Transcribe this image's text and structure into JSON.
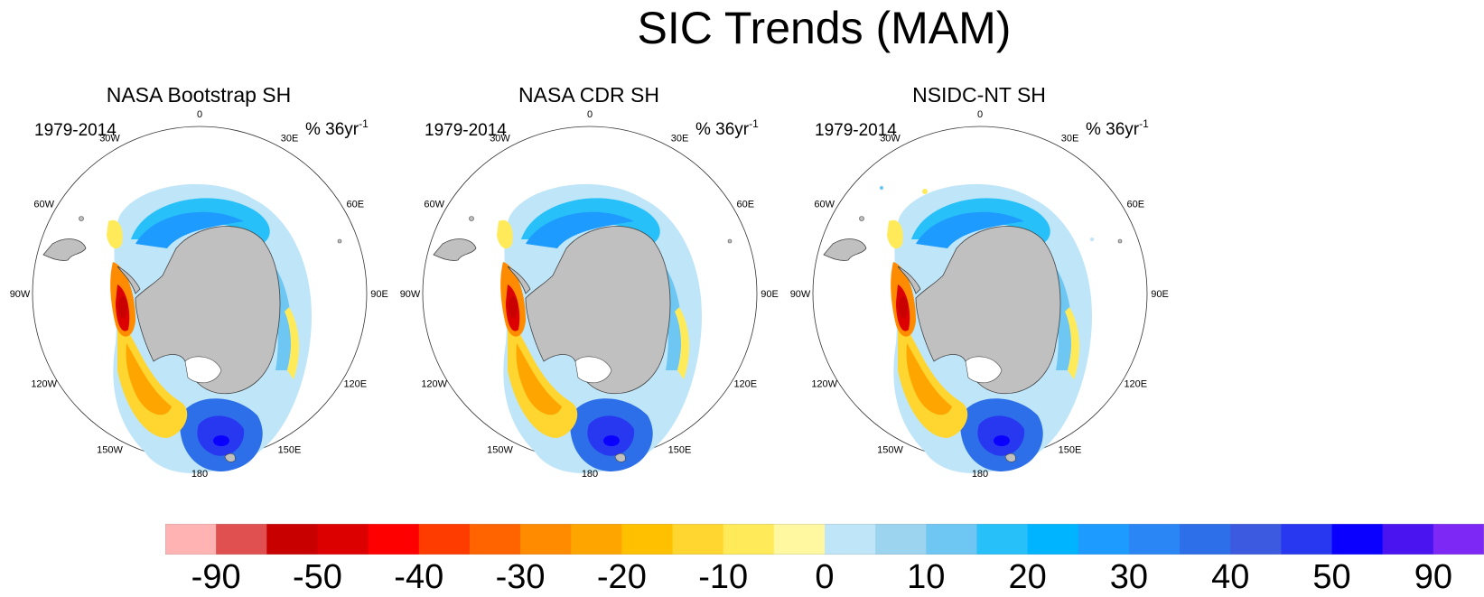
{
  "title": "SIC Trends (MAM)",
  "panels": [
    {
      "title": "NASA Bootstrap SH",
      "period": "1979-2014",
      "units_base": "% 36yr",
      "units_exp": "-1"
    },
    {
      "title": "NASA CDR SH",
      "period": "1979-2014",
      "units_base": "% 36yr",
      "units_exp": "-1"
    },
    {
      "title": "NSIDC-NT SH",
      "period": "1979-2014",
      "units_base": "% 36yr",
      "units_exp": "-1"
    }
  ],
  "longitude_labels": [
    "0",
    "30E",
    "60E",
    "90E",
    "120E",
    "150E",
    "180",
    "150W",
    "120W",
    "90W",
    "60W",
    "30W"
  ],
  "colorbar": {
    "colors": [
      "#ffb3b3",
      "#e05050",
      "#c80000",
      "#dc0000",
      "#ff0000",
      "#ff3c00",
      "#ff6400",
      "#ff8c00",
      "#ffa500",
      "#ffc000",
      "#ffd630",
      "#ffeb5a",
      "#fff8a0",
      "#bfe5f8",
      "#9cd4f0",
      "#6ec6f2",
      "#28c0f8",
      "#00b4ff",
      "#1e9bff",
      "#2a86f5",
      "#2d6fe8",
      "#3c5ae0",
      "#2838f0",
      "#0a00ff",
      "#4a14f0",
      "#7e28f5"
    ],
    "labels": [
      "-90",
      "-50",
      "-40",
      "-30",
      "-20",
      "-10",
      "0",
      "10",
      "20",
      "30",
      "40",
      "50",
      "90"
    ]
  }
}
